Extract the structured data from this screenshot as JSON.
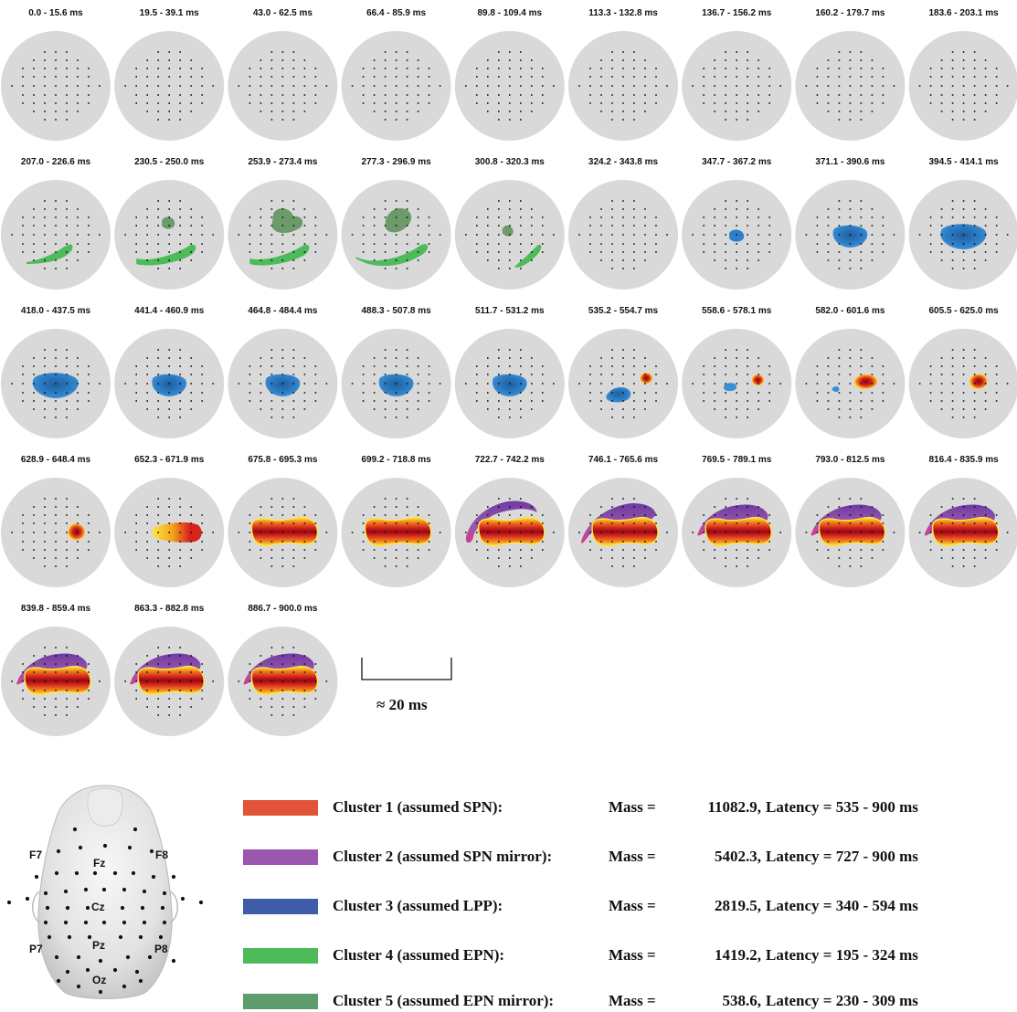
{
  "panels": [
    {
      "label": "0.0 - 15.6 ms",
      "blobs": []
    },
    {
      "label": "19.5 - 39.1 ms",
      "blobs": []
    },
    {
      "label": "43.0 - 62.5 ms",
      "blobs": []
    },
    {
      "label": "66.4 - 85.9 ms",
      "blobs": []
    },
    {
      "label": "89.8 - 109.4 ms",
      "blobs": []
    },
    {
      "label": "113.3 - 132.8 ms",
      "blobs": []
    },
    {
      "label": "136.7 - 156.2 ms",
      "blobs": []
    },
    {
      "label": "160.2 - 179.7 ms",
      "blobs": []
    },
    {
      "label": "183.6 - 203.1 ms",
      "blobs": []
    },
    {
      "label": "207.0 - 226.6 ms",
      "blobs": [
        "epn_s"
      ]
    },
    {
      "label": "230.5 - 250.0 ms",
      "blobs": [
        "mir_s",
        "epn_m"
      ]
    },
    {
      "label": "253.9 - 273.4 ms",
      "blobs": [
        "mir_l",
        "epn_m"
      ]
    },
    {
      "label": "277.3 - 296.9 ms",
      "blobs": [
        "mir_m",
        "epn_l"
      ]
    },
    {
      "label": "300.8 - 320.3 ms",
      "blobs": [
        "mir_xs",
        "epn_r"
      ]
    },
    {
      "label": "324.2 - 343.8 ms",
      "blobs": []
    },
    {
      "label": "347.7 - 367.2 ms",
      "blobs": [
        "lpp_s"
      ]
    },
    {
      "label": "371.1 - 390.6 ms",
      "blobs": [
        "lpp_m"
      ]
    },
    {
      "label": "394.5 - 414.1 ms",
      "blobs": [
        "lpp_l"
      ]
    },
    {
      "label": "418.0 - 437.5 ms",
      "blobs": [
        "lpp_l"
      ]
    },
    {
      "label": "441.4 - 460.9 ms",
      "blobs": [
        "lpp_m"
      ]
    },
    {
      "label": "464.8 - 484.4 ms",
      "blobs": [
        "lpp_m"
      ]
    },
    {
      "label": "488.3 - 507.8 ms",
      "blobs": [
        "lpp_m"
      ]
    },
    {
      "label": "511.7 - 531.2 ms",
      "blobs": [
        "lpp_m"
      ]
    },
    {
      "label": "535.2 - 554.7 ms",
      "blobs": [
        "lpp_r",
        "spn_dot"
      ]
    },
    {
      "label": "558.6 - 578.1 ms",
      "blobs": [
        "lpp_xs",
        "spn_dot2"
      ]
    },
    {
      "label": "582.0 - 601.6 ms",
      "blobs": [
        "lpp_xxs",
        "spn_sm"
      ]
    },
    {
      "label": "605.5 - 625.0 ms",
      "blobs": [
        "spn_sm2"
      ]
    },
    {
      "label": "628.9 - 648.4 ms",
      "blobs": [
        "spn_c"
      ]
    },
    {
      "label": "652.3 - 671.9 ms",
      "blobs": [
        "spn_g"
      ]
    },
    {
      "label": "675.8 - 695.3 ms",
      "blobs": [
        "spn_f"
      ]
    },
    {
      "label": "699.2 - 718.8 ms",
      "blobs": [
        "spn_f"
      ]
    },
    {
      "label": "722.7 - 742.2 ms",
      "blobs": [
        "sm_a",
        "spn_f"
      ]
    },
    {
      "label": "746.1 - 765.6 ms",
      "blobs": [
        "sm_b",
        "spn_f"
      ]
    },
    {
      "label": "769.5 - 789.1 ms",
      "blobs": [
        "sm_c",
        "spn_f"
      ]
    },
    {
      "label": "793.0 - 812.5 ms",
      "blobs": [
        "sm_c",
        "spn_f"
      ]
    },
    {
      "label": "816.4 - 835.9 ms",
      "blobs": [
        "sm_c",
        "spn_f"
      ]
    },
    {
      "label": "839.8 - 859.4 ms",
      "blobs": [
        "sm_c",
        "spn_f"
      ]
    },
    {
      "label": "863.3 - 882.8 ms",
      "blobs": [
        "sm_c",
        "spn_f"
      ]
    },
    {
      "label": "886.7 - 900.0 ms",
      "blobs": [
        "sm_c",
        "spn_f"
      ]
    }
  ],
  "scale_bar": {
    "label": "≈ 20 ms"
  },
  "head": {
    "electrode_labels": {
      "F7": "F7",
      "F8": "F8",
      "Fz": "Fz",
      "Cz": "Cz",
      "Pz": "Pz",
      "P7": "P7",
      "P8": "P8",
      "Oz": "Oz"
    }
  },
  "legend": [
    {
      "name": "Cluster 1 (assumed SPN):",
      "mass_label": "Mass =",
      "mass": "11082.9,",
      "latency": "Latency = 535 - 900 ms",
      "color": "#e2533a"
    },
    {
      "name": "Cluster 2 (assumed SPN mirror):",
      "mass_label": "Mass =",
      "mass": "5402.3,",
      "latency": "Latency = 727 - 900 ms",
      "color": "#9a57ad"
    },
    {
      "name": "Cluster 3 (assumed LPP):",
      "mass_label": "Mass =",
      "mass": "2819.5,",
      "latency": "Latency = 340 - 594 ms",
      "color": "#3f5ca8"
    },
    {
      "name": "Cluster 4 (assumed EPN):",
      "mass_label": "Mass =",
      "mass": "1419.2,",
      "latency": "Latency = 195 - 324 ms",
      "color": "#4dbb5a"
    },
    {
      "name": "Cluster 5 (assumed EPN mirror):",
      "mass_label": "Mass =",
      "mass": "538.6,",
      "latency": "Latency = 230 - 309 ms",
      "color": "#5e9b6d"
    }
  ]
}
